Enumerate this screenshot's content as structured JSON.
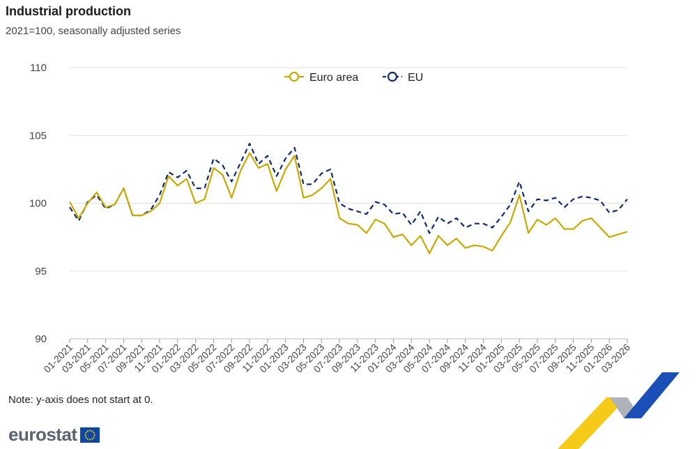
{
  "title": "Industrial production",
  "subtitle": "2021=100, seasonally adjusted series",
  "note": "Note: y-axis does not start at 0.",
  "logo_text": "eurostat",
  "colors": {
    "euro_area": "#c9a800",
    "eu": "#0c2a6e",
    "grid": "#e2e2e2"
  },
  "chart_data": {
    "type": "line",
    "title": "Industrial production",
    "subtitle": "2021=100, seasonally adjusted series",
    "ylim": [
      90,
      110
    ],
    "yticks": [
      90,
      95,
      100,
      105,
      110
    ],
    "grid": true,
    "legend": "top-center",
    "x": [
      "01-2021",
      "02-2021",
      "03-2021",
      "04-2021",
      "05-2021",
      "06-2021",
      "07-2021",
      "08-2021",
      "09-2021",
      "10-2021",
      "11-2021",
      "12-2021",
      "01-2022",
      "02-2022",
      "03-2022",
      "04-2022",
      "05-2022",
      "06-2022",
      "07-2022",
      "08-2022",
      "09-2022",
      "10-2022",
      "11-2022",
      "12-2022",
      "01-2023",
      "02-2023",
      "03-2023",
      "04-2023",
      "05-2023",
      "06-2023",
      "07-2023",
      "08-2023",
      "09-2023",
      "10-2023",
      "11-2023",
      "12-2023",
      "01-2024",
      "02-2024",
      "03-2024",
      "04-2024",
      "05-2024",
      "06-2024",
      "07-2024",
      "08-2024",
      "09-2024",
      "10-2024",
      "11-2024",
      "12-2024",
      "01-2025",
      "02-2025",
      "03-2025",
      "04-2025",
      "05-2025",
      "06-2025",
      "07-2025",
      "08-2025",
      "09-2025",
      "10-2025",
      "11-2025",
      "12-2025",
      "01-2026",
      "02-2026",
      "03-2026"
    ],
    "xticks": [
      "01-2021",
      "03-2021",
      "05-2021",
      "07-2021",
      "09-2021",
      "11-2021",
      "01-2022",
      "03-2022",
      "05-2022",
      "07-2022",
      "09-2022",
      "11-2022",
      "01-2023",
      "03-2023",
      "05-2023",
      "07-2023",
      "09-2023",
      "11-2023",
      "01-2024",
      "03-2024",
      "05-2024",
      "07-2024",
      "09-2024",
      "11-2024",
      "01-2025",
      "03-2025",
      "05-2025",
      "07-2025",
      "09-2025",
      "11-2025",
      "01-2026",
      "03-2026"
    ],
    "series": [
      {
        "name": "Euro area",
        "color": "#c9a800",
        "dash": false,
        "values": [
          100.1,
          98.9,
          100.0,
          100.8,
          99.7,
          99.9,
          101.1,
          99.1,
          99.1,
          99.4,
          100.0,
          102.0,
          101.3,
          101.8,
          100.0,
          100.3,
          102.6,
          102.1,
          100.4,
          102.4,
          103.7,
          102.6,
          102.9,
          100.9,
          102.5,
          103.5,
          100.4,
          100.6,
          101.1,
          101.8,
          98.9,
          98.5,
          98.4,
          97.8,
          98.8,
          98.5,
          97.5,
          97.7,
          96.9,
          97.6,
          96.3,
          97.6,
          96.9,
          97.4,
          96.7,
          96.9,
          96.8,
          96.5,
          97.6,
          98.6,
          100.6,
          97.8,
          98.8,
          98.4,
          98.9,
          98.1,
          98.1,
          98.7,
          98.9,
          98.2,
          97.5,
          97.7,
          97.9
        ]
      },
      {
        "name": "EU",
        "color": "#0c2a6e",
        "dash": true,
        "values": [
          99.7,
          98.7,
          100.1,
          100.6,
          99.6,
          99.9,
          101.1,
          99.1,
          99.1,
          99.5,
          100.6,
          102.3,
          101.9,
          102.4,
          101.1,
          101.1,
          103.3,
          102.8,
          101.6,
          103.0,
          104.4,
          102.9,
          103.5,
          102.0,
          103.3,
          104.1,
          101.4,
          101.4,
          102.2,
          102.5,
          100.0,
          99.6,
          99.4,
          99.2,
          100.1,
          99.9,
          99.2,
          99.3,
          98.4,
          99.4,
          97.8,
          99.0,
          98.5,
          98.9,
          98.2,
          98.5,
          98.5,
          98.2,
          99.0,
          99.9,
          101.6,
          99.4,
          100.3,
          100.2,
          100.4,
          99.7,
          100.3,
          100.5,
          100.4,
          100.2,
          99.3,
          99.5,
          100.3
        ]
      }
    ]
  }
}
